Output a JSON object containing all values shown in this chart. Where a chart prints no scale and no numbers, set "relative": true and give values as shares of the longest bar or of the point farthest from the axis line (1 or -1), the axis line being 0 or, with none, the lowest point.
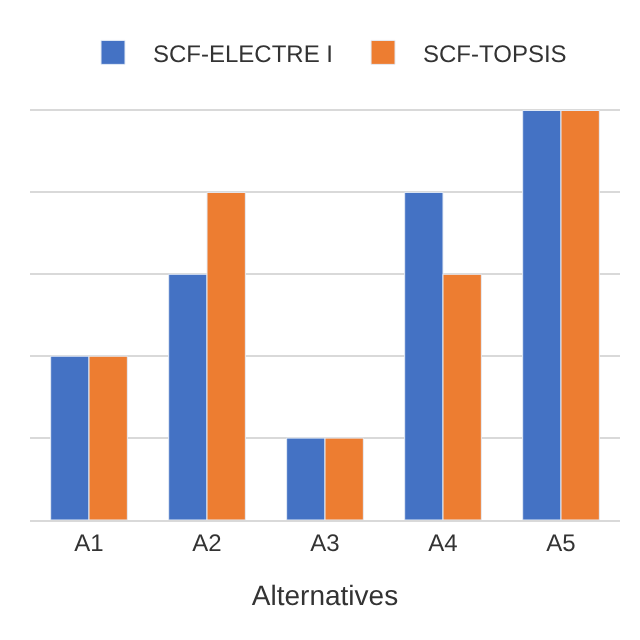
{
  "chart_data": {
    "type": "bar",
    "xlabel": "Alternatives",
    "categories": [
      "A1",
      "A2",
      "A3",
      "A4",
      "A5"
    ],
    "relative": true,
    "grid": "y",
    "legend": "top",
    "series": [
      {
        "name": "SCF-ELECTRE I",
        "color": "#4472c4",
        "values": [
          0.4,
          0.6,
          0.2,
          0.8,
          1.0
        ]
      },
      {
        "name": "SCF-TOPSIS",
        "color": "#ed7d31",
        "values": [
          0.4,
          0.8,
          0.2,
          0.6,
          1.0
        ]
      }
    ]
  }
}
